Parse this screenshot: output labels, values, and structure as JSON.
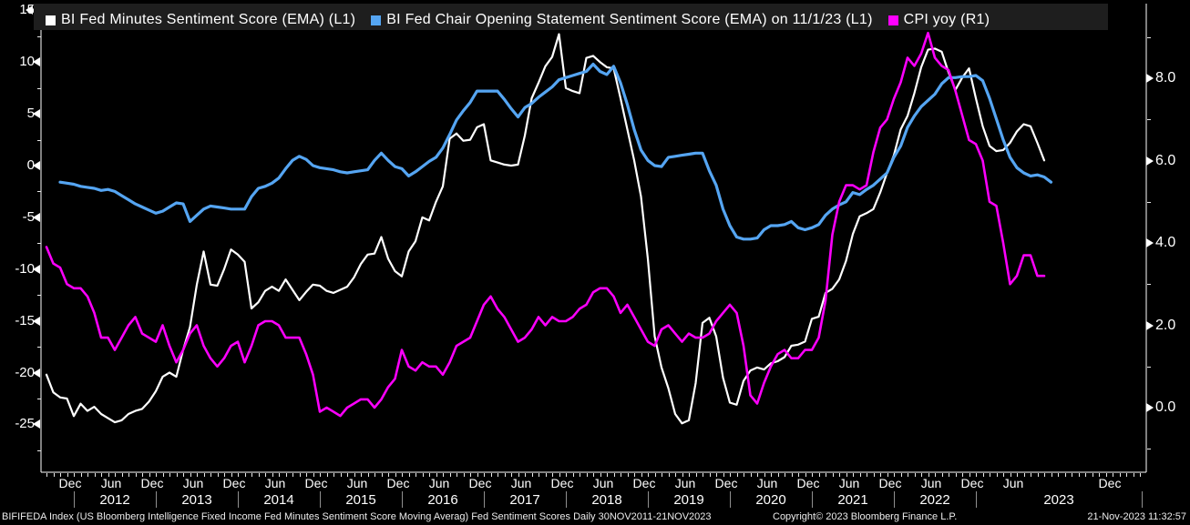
{
  "legend": {
    "items": [
      {
        "label": "BI Fed Minutes Sentiment Score (EMA) (L1)",
        "color": "#ffffff"
      },
      {
        "label": "BI Fed Chair Opening Statement Sentiment Score (EMA) on 11/1/23 (L1)",
        "color": "#55a5f2"
      },
      {
        "label": "CPI yoy (R1)",
        "color": "#ff00ff"
      }
    ]
  },
  "footer": {
    "left": "BIFIFEDA Index (US Bloomberg Intelligence Fixed Income Fed Minutes Sentiment Score Moving Averag) Fed Sentiment Scores  Daily 30NOV2011-21NOV2023",
    "copyright": "Copyright© 2023 Bloomberg Finance L.P.",
    "timestamp": "21-Nov-2023 11:32:57"
  },
  "chart_data": {
    "type": "line",
    "background": "#000000",
    "grid": false,
    "legend_position": "top",
    "left_axis": {
      "side": "L1",
      "ticks": [
        15,
        10,
        5,
        0,
        -5,
        -10,
        -15,
        -20,
        -25
      ],
      "minor_ticks": [
        12.5,
        7.5,
        2.5,
        -2.5,
        -7.5,
        -12.5,
        -17.5,
        -22.5,
        -27.5
      ],
      "range": [
        -27.5,
        15.9
      ]
    },
    "right_axis": {
      "side": "R1",
      "tick_labels": [
        "8.0",
        "6.0",
        "4.0",
        "2.0",
        "0.0"
      ],
      "tick_values": [
        8,
        6,
        4,
        2,
        0
      ],
      "minor_ticks": [
        9,
        7,
        5,
        3,
        1,
        -1
      ],
      "range": [
        -1.6,
        9.9
      ]
    },
    "x_axis": {
      "unit": "months_since_jan2012",
      "month_labels": [
        {
          "text": "Dec",
          "x": 77
        },
        {
          "text": "Jun",
          "x": 122
        },
        {
          "text": "Dec",
          "x": 167
        },
        {
          "text": "Jun",
          "x": 212
        },
        {
          "text": "Dec",
          "x": 257
        },
        {
          "text": "Jun",
          "x": 302
        },
        {
          "text": "Dec",
          "x": 347
        },
        {
          "text": "Jun",
          "x": 392
        },
        {
          "text": "Dec",
          "x": 437
        },
        {
          "text": "Jun",
          "x": 482
        },
        {
          "text": "Dec",
          "x": 527
        },
        {
          "text": "Jun",
          "x": 572
        },
        {
          "text": "Dec",
          "x": 617
        },
        {
          "text": "Jun",
          "x": 662
        },
        {
          "text": "Dec",
          "x": 707
        },
        {
          "text": "Jun",
          "x": 752
        },
        {
          "text": "Dec",
          "x": 797
        },
        {
          "text": "Jun",
          "x": 842
        },
        {
          "text": "Dec",
          "x": 887
        },
        {
          "text": "Jun",
          "x": 932
        },
        {
          "text": "Dec",
          "x": 977
        },
        {
          "text": "Jun",
          "x": 1022
        },
        {
          "text": "Dec",
          "x": 1067
        },
        {
          "text": "Jun",
          "x": 1112
        },
        {
          "text": "Dec",
          "x": 1218
        }
      ],
      "year_labels": [
        {
          "text": "2012",
          "x": 126
        },
        {
          "text": "2013",
          "x": 216
        },
        {
          "text": "2014",
          "x": 306
        },
        {
          "text": "2015",
          "x": 396
        },
        {
          "text": "2016",
          "x": 486
        },
        {
          "text": "2017",
          "x": 576
        },
        {
          "text": "2018",
          "x": 666
        },
        {
          "text": "2019",
          "x": 756
        },
        {
          "text": "2020",
          "x": 846
        },
        {
          "text": "2021",
          "x": 936
        },
        {
          "text": "2022",
          "x": 1026
        },
        {
          "text": "2023",
          "x": 1162
        }
      ],
      "dividers_x": [
        81,
        171,
        261,
        351,
        441,
        531,
        621,
        711,
        801,
        891,
        981,
        1071,
        1253
      ],
      "minor_tick_month_range": [
        -4,
        156
      ]
    },
    "series": [
      {
        "name": "BI Fed Minutes Sentiment Score (EMA)",
        "axis": "L1",
        "color": "#ffffff",
        "width": 2.2,
        "start": "2011-09",
        "start_m": -4,
        "frequency": "monthly",
        "values": [
          -20.2,
          -21.9,
          -22.4,
          -22.5,
          -24.2,
          -23.0,
          -23.7,
          -23.3,
          -24.0,
          -24.4,
          -24.8,
          -24.6,
          -24.0,
          -23.7,
          -23.5,
          -22.8,
          -21.8,
          -20.4,
          -20.0,
          -20.4,
          -17.8,
          -15.6,
          -11.5,
          -8.3,
          -11.5,
          -11.6,
          -10.0,
          -8.1,
          -8.6,
          -9.3,
          -13.8,
          -13.2,
          -12.1,
          -11.7,
          -12.1,
          -11.0,
          -12.0,
          -13.0,
          -12.2,
          -11.5,
          -11.6,
          -12.1,
          -12.3,
          -12.0,
          -11.7,
          -10.8,
          -9.5,
          -8.6,
          -8.5,
          -6.9,
          -9.0,
          -10.2,
          -10.7,
          -8.3,
          -7.3,
          -5.0,
          -5.3,
          -3.5,
          -2.0,
          2.6,
          3.1,
          2.4,
          2.5,
          3.7,
          4.0,
          0.5,
          0.3,
          0.1,
          0.0,
          0.1,
          2.9,
          6.5,
          8.0,
          9.6,
          10.5,
          12.7,
          7.5,
          7.2,
          7.0,
          10.4,
          10.6,
          10.0,
          9.5,
          9.4,
          6.5,
          3.5,
          0.5,
          -3.0,
          -9.0,
          -16.5,
          -19.5,
          -21.5,
          -24.0,
          -24.9,
          -24.6,
          -21.0,
          -15.2,
          -14.7,
          -16.5,
          -20.5,
          -22.9,
          -23.1,
          -20.8,
          -19.8,
          -19.5,
          -19.7,
          -19.1,
          -18.9,
          -18.5,
          -17.4,
          -17.3,
          -17.0,
          -14.8,
          -14.6,
          -12.3,
          -11.9,
          -11.0,
          -9.2,
          -6.6,
          -4.9,
          -4.6,
          -4.2,
          -2.6,
          -0.7,
          1.0,
          3.5,
          4.8,
          7.0,
          9.5,
          11.2,
          11.3,
          11.0,
          9.0,
          7.3,
          8.5,
          9.4,
          6.5,
          3.8,
          1.9,
          1.4,
          1.5,
          2.2,
          3.3,
          4.0,
          3.8,
          2.2,
          0.5
        ]
      },
      {
        "name": "BI Fed Chair Opening Statement Sentiment Score (EMA) on 11/1/23",
        "axis": "L1",
        "color": "#55a5f2",
        "width": 3.2,
        "start": "2011-11",
        "start_m": -2,
        "frequency": "monthly",
        "values": [
          -1.6,
          -1.7,
          -1.8,
          -2.0,
          -2.1,
          -2.2,
          -2.4,
          -2.3,
          -2.5,
          -2.9,
          -3.3,
          -3.7,
          -4.0,
          -4.3,
          -4.6,
          -4.4,
          -4.0,
          -3.6,
          -3.7,
          -5.4,
          -4.8,
          -4.2,
          -3.9,
          -4.0,
          -4.1,
          -4.2,
          -4.2,
          -4.2,
          -3.0,
          -2.2,
          -2.0,
          -1.7,
          -1.2,
          -0.3,
          0.5,
          0.9,
          0.6,
          0.0,
          -0.2,
          -0.3,
          -0.4,
          -0.6,
          -0.7,
          -0.6,
          -0.5,
          -0.4,
          0.5,
          1.2,
          0.5,
          -0.1,
          -0.3,
          -1.0,
          -0.6,
          -0.1,
          0.4,
          0.8,
          1.7,
          3.0,
          4.4,
          5.3,
          6.1,
          7.2,
          7.2,
          7.2,
          7.2,
          6.4,
          5.5,
          4.7,
          5.6,
          6.0,
          6.6,
          7.1,
          7.6,
          8.3,
          8.5,
          8.7,
          8.9,
          9.1,
          9.8,
          9.1,
          8.8,
          9.6,
          8.0,
          5.9,
          3.5,
          1.5,
          0.5,
          0.0,
          -0.1,
          0.8,
          0.9,
          1.0,
          1.1,
          1.2,
          1.2,
          -0.5,
          -1.9,
          -4.2,
          -5.8,
          -6.9,
          -7.1,
          -7.1,
          -7.0,
          -6.2,
          -5.8,
          -5.8,
          -5.7,
          -5.4,
          -6.0,
          -6.2,
          -6.0,
          -5.7,
          -4.8,
          -4.2,
          -3.8,
          -3.5,
          -2.6,
          -2.8,
          -2.3,
          -1.9,
          -1.3,
          -0.7,
          0.8,
          1.9,
          3.7,
          4.8,
          5.7,
          6.3,
          6.9,
          7.9,
          8.5,
          8.5,
          8.6,
          8.6,
          8.7,
          8.2,
          6.5,
          4.5,
          2.5,
          0.8,
          -0.2,
          -0.7,
          -1.0,
          -0.9,
          -1.1,
          -1.6
        ]
      },
      {
        "name": "CPI yoy",
        "axis": "R1",
        "color": "#fa00fa",
        "width": 2.6,
        "start": "2011-09",
        "start_m": -4,
        "frequency": "monthly",
        "values": [
          3.9,
          3.5,
          3.4,
          3.0,
          2.9,
          2.9,
          2.7,
          2.3,
          1.7,
          1.7,
          1.4,
          1.7,
          2.0,
          2.2,
          1.8,
          1.7,
          1.6,
          2.0,
          1.5,
          1.1,
          1.4,
          1.8,
          2.0,
          1.5,
          1.2,
          1.0,
          1.2,
          1.5,
          1.6,
          1.1,
          1.5,
          2.0,
          2.1,
          2.1,
          2.0,
          1.7,
          1.7,
          1.7,
          1.3,
          0.8,
          -0.1,
          0.0,
          -0.1,
          -0.2,
          0.0,
          0.1,
          0.2,
          0.2,
          0.0,
          0.2,
          0.5,
          0.7,
          1.4,
          1.0,
          0.9,
          1.1,
          1.0,
          1.0,
          0.8,
          1.1,
          1.5,
          1.6,
          1.7,
          2.1,
          2.5,
          2.7,
          2.4,
          2.2,
          1.9,
          1.6,
          1.7,
          1.9,
          2.2,
          2.0,
          2.2,
          2.1,
          2.1,
          2.2,
          2.4,
          2.5,
          2.8,
          2.9,
          2.9,
          2.7,
          2.3,
          2.5,
          2.2,
          1.9,
          1.6,
          1.5,
          1.9,
          2.0,
          1.8,
          1.6,
          1.8,
          1.7,
          1.7,
          1.8,
          2.1,
          2.3,
          2.5,
          2.3,
          1.5,
          0.3,
          0.1,
          0.6,
          1.0,
          1.3,
          1.4,
          1.2,
          1.2,
          1.4,
          1.4,
          1.7,
          2.6,
          4.2,
          5.0,
          5.4,
          5.4,
          5.3,
          5.4,
          6.2,
          6.8,
          7.0,
          7.5,
          7.9,
          8.5,
          8.3,
          8.6,
          9.1,
          8.5,
          8.3,
          8.2,
          7.7,
          7.1,
          6.5,
          6.4,
          6.0,
          5.0,
          4.9,
          4.0,
          3.0,
          3.2,
          3.7,
          3.7,
          3.2,
          3.2
        ]
      }
    ]
  }
}
